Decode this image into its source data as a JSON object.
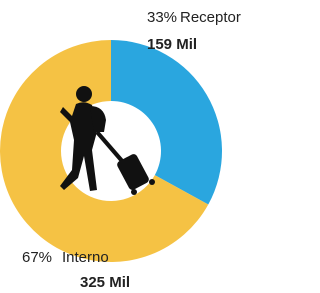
{
  "chart_data": {
    "type": "pie",
    "donut": true,
    "categories": [
      "Receptor",
      "Interno"
    ],
    "values": [
      33,
      67
    ],
    "value_labels": [
      "33%",
      "67%"
    ],
    "colors": [
      "#2aa6df",
      "#f5c244"
    ],
    "amounts": {
      "values": [
        159,
        325
      ],
      "value_labels": [
        "159 Mil",
        "325 Mil"
      ]
    }
  }
}
